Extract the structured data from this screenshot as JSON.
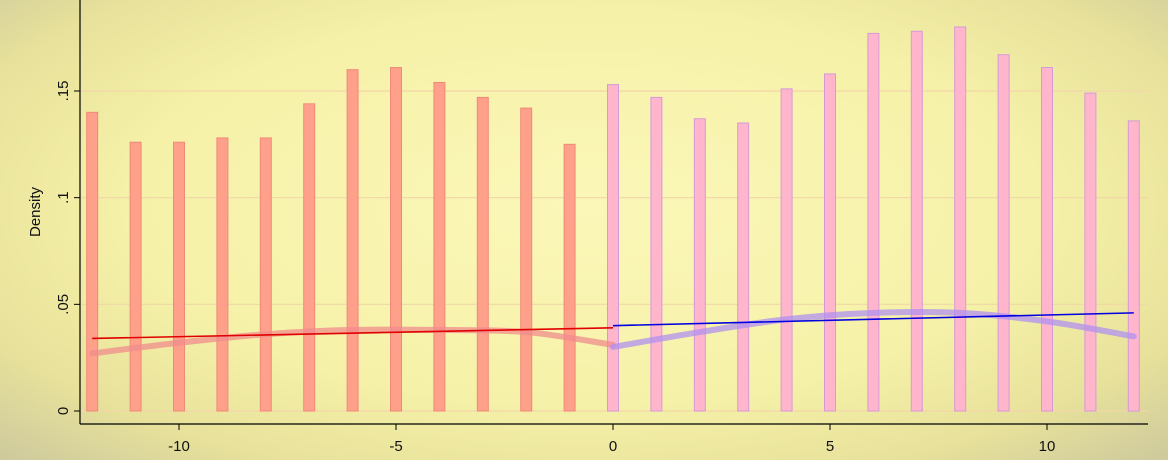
{
  "chart_data": {
    "type": "bar",
    "title": "",
    "xlabel": "",
    "ylabel": "Density",
    "xlim": [
      -12.2,
      12.2
    ],
    "ylim": [
      0,
      0.19
    ],
    "x_ticks": [
      -10,
      -5,
      0,
      5,
      10
    ],
    "x_tick_labels": [
      "-10",
      "-5",
      "0",
      "5",
      "10"
    ],
    "y_ticks": [
      0,
      0.05,
      0.1,
      0.15
    ],
    "y_tick_labels": [
      "0",
      ".05",
      ".1",
      ".15"
    ],
    "grid": true,
    "colors": {
      "left_bars_fill": "#ffa08a",
      "left_bars_stroke": "#f08a78",
      "right_bars_fill": "#ffb6cc",
      "right_bars_stroke": "#d49ad8",
      "left_fit": "#e00000",
      "right_fit": "#0000e0",
      "left_smooth": "#f08c8c",
      "right_smooth": "#b090f0",
      "grid": "#f2d6a8",
      "axis": "#000000"
    },
    "series": [
      {
        "group": "left",
        "x": [
          -12,
          -11,
          -10,
          -9,
          -8,
          -7,
          -6,
          -5,
          -4,
          -3,
          -2,
          -1
        ],
        "values": [
          0.14,
          0.126,
          0.126,
          0.128,
          0.128,
          0.144,
          0.16,
          0.161,
          0.154,
          0.147,
          0.142,
          0.125
        ]
      },
      {
        "group": "right",
        "x": [
          0,
          1,
          2,
          3,
          4,
          5,
          6,
          7,
          8,
          9,
          10,
          11,
          12
        ],
        "values": [
          0.153,
          0.147,
          0.137,
          0.135,
          0.151,
          0.158,
          0.177,
          0.178,
          0.18,
          0.167,
          0.161,
          0.149,
          0.136
        ]
      }
    ],
    "fit_lines": [
      {
        "group": "left",
        "x": [
          -12,
          0
        ],
        "y": [
          0.034,
          0.039
        ]
      },
      {
        "group": "right",
        "x": [
          0,
          12
        ],
        "y": [
          0.04,
          0.046
        ]
      }
    ],
    "smooth_curves": [
      {
        "group": "left",
        "x": [
          -12,
          -10,
          -8,
          -6,
          -4,
          -2,
          0
        ],
        "y": [
          0.027,
          0.032,
          0.036,
          0.038,
          0.038,
          0.037,
          0.031
        ]
      },
      {
        "group": "right",
        "x": [
          0,
          2,
          4,
          6,
          8,
          10,
          12
        ],
        "y": [
          0.03,
          0.037,
          0.043,
          0.046,
          0.046,
          0.042,
          0.035
        ]
      }
    ]
  }
}
